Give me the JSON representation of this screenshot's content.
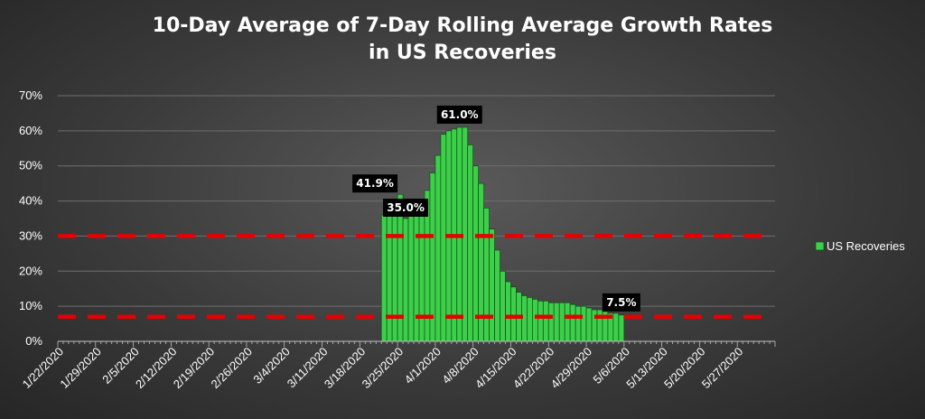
{
  "chart_data": {
    "type": "bar",
    "title_line1": "10-Day Average of 7-Day Rolling Average Growth Rates",
    "title_line2": "in US Recoveries",
    "xlabel": "",
    "ylabel": "",
    "ylim": [
      0,
      0.7
    ],
    "y_ticks": [
      "0%",
      "10%",
      "20%",
      "30%",
      "40%",
      "50%",
      "60%",
      "70%"
    ],
    "x_tick_labels": [
      "1/22/2020",
      "1/29/2020",
      "2/5/2020",
      "2/12/2020",
      "2/19/2020",
      "2/26/2020",
      "3/4/2020",
      "3/11/2020",
      "3/18/2020",
      "3/25/2020",
      "4/1/2020",
      "4/8/2020",
      "4/15/2020",
      "4/22/2020",
      "4/29/2020",
      "5/6/2020",
      "5/13/2020",
      "5/20/2020",
      "5/27/2020"
    ],
    "date_range": [
      "1/22/2020",
      "6/2/2020"
    ],
    "grid": true,
    "legend_position": "right",
    "bar_color": "#3dcf4a",
    "bar_border_color": "#0f4a15",
    "reference_line_color": "#e60000",
    "reference_lines": [
      0.3,
      0.07
    ],
    "series": [
      {
        "name": "US Recoveries",
        "start_date": "3/22/2020",
        "values": [
          0.36,
          0.38,
          0.4,
          0.419,
          0.35,
          0.36,
          0.38,
          0.4,
          0.43,
          0.48,
          0.53,
          0.59,
          0.6,
          0.605,
          0.61,
          0.61,
          0.56,
          0.5,
          0.45,
          0.38,
          0.32,
          0.26,
          0.2,
          0.17,
          0.155,
          0.14,
          0.13,
          0.125,
          0.12,
          0.115,
          0.115,
          0.11,
          0.11,
          0.11,
          0.11,
          0.105,
          0.1,
          0.1,
          0.095,
          0.09,
          0.09,
          0.085,
          0.08,
          0.08,
          0.075
        ]
      }
    ],
    "data_labels": [
      {
        "text": "41.9%",
        "index": 3,
        "value": 0.419
      },
      {
        "text": "35.0%",
        "index": 4,
        "value": 0.35
      },
      {
        "text": "61.0%",
        "index": 14,
        "value": 0.61
      },
      {
        "text": "7.5%",
        "index": 44,
        "value": 0.075
      }
    ]
  }
}
